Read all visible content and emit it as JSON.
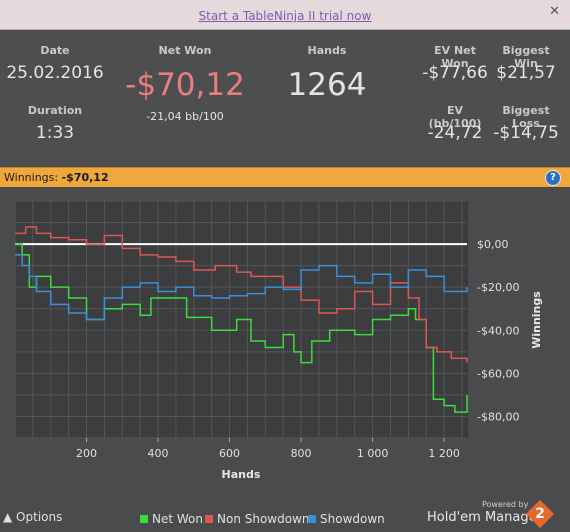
{
  "banner": {
    "trial_link": "Start a TableNinja II trial now"
  },
  "stats": {
    "date_label": "Date",
    "date_value": "25.02.2016",
    "duration_label": "Duration",
    "duration_value": "1:33",
    "net_won_label": "Net Won",
    "net_won_value": "-$70,12",
    "net_won_bb": "-21,04 bb/100",
    "hands_label": "Hands",
    "hands_value": "1264",
    "ev_net_won_label": "EV Net Won",
    "ev_net_won_value": "-$77,66",
    "biggest_win_label": "Biggest Win",
    "biggest_win_value": "$21,57",
    "ev_bb_label": "EV (bb/100)",
    "ev_bb_value": "-24,72",
    "biggest_loss_label": "Biggest Loss",
    "biggest_loss_value": "-$14,75"
  },
  "winnings_bar": {
    "label": "Winnings:",
    "value": "-$70,12"
  },
  "colors": {
    "net_won": "#3ddc3d",
    "non_showdown": "#e05555",
    "showdown": "#3d8fd8",
    "negative": "#e87e7e",
    "accent": "#f0a83c"
  },
  "chart_data": {
    "type": "line",
    "xlabel": "Hands",
    "ylabel": "Winnings",
    "xlim": [
      0,
      1264
    ],
    "ylim": [
      -90,
      20
    ],
    "x_ticks": [
      200,
      400,
      600,
      800,
      1000,
      1200
    ],
    "x_tick_labels": [
      "200",
      "400",
      "600",
      "800",
      "1 000",
      "1 200"
    ],
    "y_ticks": [
      0,
      -20,
      -40,
      -60,
      -80
    ],
    "y_tick_labels": [
      "$0,00",
      "-$20,00",
      "-$40,00",
      "-$60,00",
      "-$80,00"
    ],
    "grid": true,
    "series": [
      {
        "name": "Net Won",
        "x": [
          0,
          20,
          40,
          60,
          100,
          150,
          200,
          250,
          300,
          350,
          380,
          420,
          480,
          550,
          620,
          660,
          700,
          750,
          780,
          800,
          830,
          880,
          950,
          1000,
          1050,
          1100,
          1120,
          1150,
          1170,
          1200,
          1230,
          1264
        ],
        "values": [
          0,
          -5,
          -20,
          -15,
          -20,
          -25,
          -35,
          -30,
          -28,
          -33,
          -25,
          -25,
          -34,
          -40,
          -35,
          -45,
          -48,
          -42,
          -50,
          -55,
          -45,
          -40,
          -42,
          -35,
          -33,
          -30,
          -35,
          -48,
          -72,
          -75,
          -78,
          -70
        ]
      },
      {
        "name": "Non Showdown",
        "x": [
          0,
          30,
          60,
          100,
          150,
          200,
          250,
          300,
          350,
          400,
          450,
          500,
          560,
          620,
          660,
          700,
          750,
          800,
          850,
          900,
          950,
          1000,
          1050,
          1100,
          1130,
          1150,
          1180,
          1220,
          1264
        ],
        "values": [
          5,
          8,
          5,
          3,
          2,
          0,
          4,
          -2,
          -5,
          -6,
          -8,
          -12,
          -10,
          -13,
          -15,
          -15,
          -20,
          -26,
          -32,
          -30,
          -22,
          -28,
          -18,
          -25,
          -35,
          -48,
          -50,
          -53,
          -55
        ]
      },
      {
        "name": "Showdown",
        "x": [
          0,
          20,
          40,
          60,
          100,
          150,
          200,
          250,
          300,
          350,
          400,
          450,
          500,
          550,
          600,
          650,
          700,
          750,
          800,
          850,
          900,
          950,
          1000,
          1050,
          1100,
          1150,
          1200,
          1264
        ],
        "values": [
          -5,
          -10,
          -15,
          -22,
          -28,
          -32,
          -35,
          -25,
          -20,
          -18,
          -22,
          -20,
          -24,
          -25,
          -24,
          -23,
          -20,
          -21,
          -12,
          -10,
          -15,
          -18,
          -14,
          -20,
          -12,
          -15,
          -22,
          -20
        ]
      }
    ]
  },
  "footer": {
    "options_label": "Options",
    "legend": [
      "Net Won",
      "Non Showdown",
      "Showdown"
    ],
    "powered_by": "Powered by",
    "brand": "Hold'em Manager",
    "logo_num": "2"
  }
}
